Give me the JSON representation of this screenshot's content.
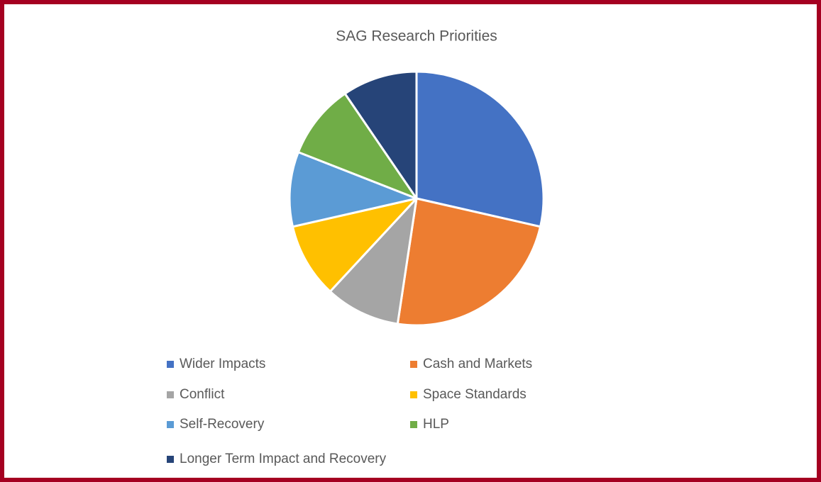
{
  "chart_data": {
    "type": "pie",
    "title": "SAG Research Priorities",
    "categories": [
      "Wider Impacts",
      "Cash and Markets",
      "Conflict",
      "Space Standards",
      "Self-Recovery",
      "HLP",
      "Longer Term Impact and Recovery"
    ],
    "values": [
      6,
      5,
      2,
      2,
      2,
      2,
      2
    ],
    "colors": [
      "#4472c4",
      "#ed7d31",
      "#a5a5a5",
      "#ffc000",
      "#5b9bd5",
      "#70ad47",
      "#264478"
    ],
    "legend": "bottom"
  }
}
